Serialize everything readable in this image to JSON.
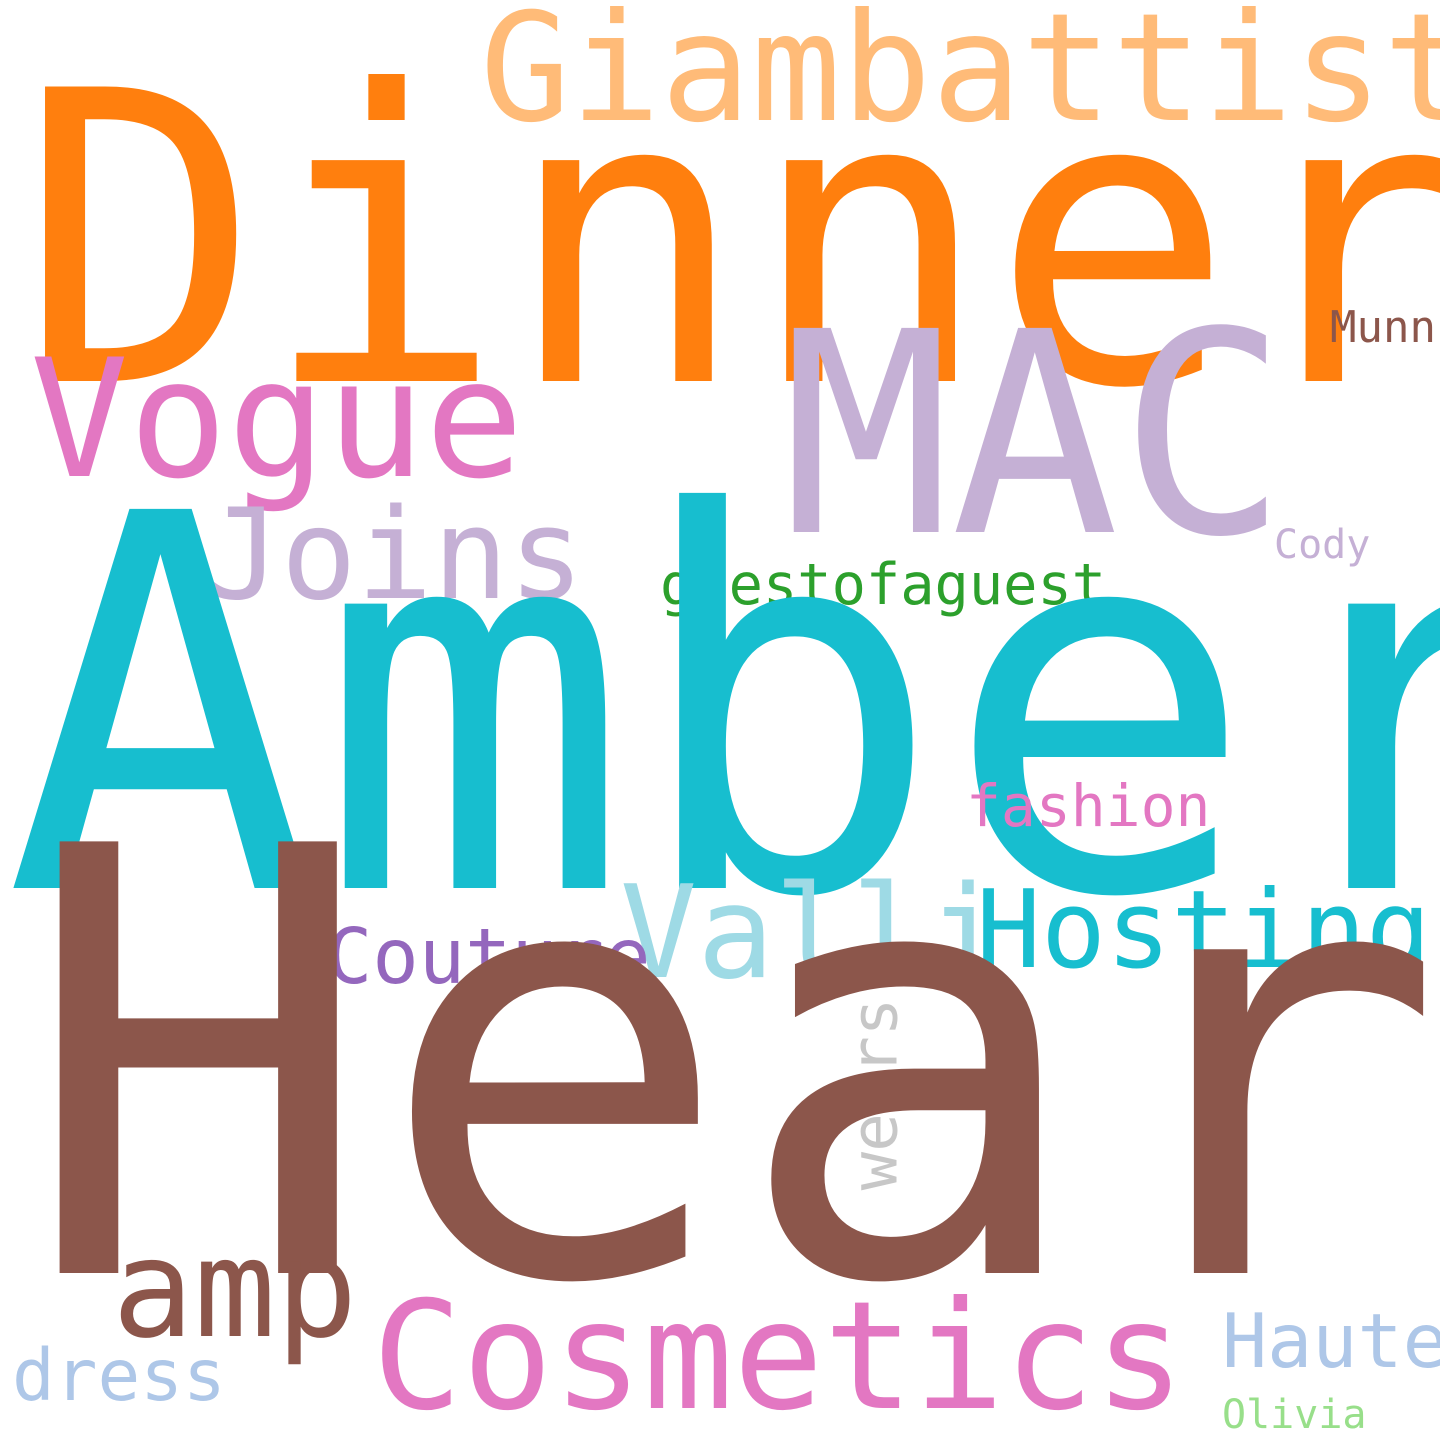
{
  "words": {
    "dinner": {
      "text": "Dinner",
      "color": "#ff7f0e"
    },
    "giambattista": {
      "text": "Giambattista",
      "color": "#ffbb78"
    },
    "munn": {
      "text": "Munn",
      "color": "#8c564b"
    },
    "vogue": {
      "text": "Vogue",
      "color": "#e377c2"
    },
    "mac": {
      "text": "MAC",
      "color": "#c5b0d5"
    },
    "joins": {
      "text": "Joins",
      "color": "#c5b0d5"
    },
    "cody": {
      "text": "Cody",
      "color": "#c5b0d5"
    },
    "guestofaguest": {
      "text": "guestofaguest",
      "color": "#2ca02c"
    },
    "amber": {
      "text": "Amber",
      "color": "#17becf"
    },
    "fashion": {
      "text": "fashion",
      "color": "#e377c2"
    },
    "valli": {
      "text": "Valli",
      "color": "#9edae5"
    },
    "hosting": {
      "text": "Hosting",
      "color": "#17becf"
    },
    "couture": {
      "text": "Couture",
      "color": "#9467bd"
    },
    "wears": {
      "text": "wears",
      "color": "#c7c7c7"
    },
    "heard": {
      "text": "Heard",
      "color": "#8c564b"
    },
    "amp": {
      "text": "amp",
      "color": "#8c564b"
    },
    "cosmetics": {
      "text": "Cosmetics",
      "color": "#e377c2"
    },
    "haute": {
      "text": "Haute",
      "color": "#aec7e8"
    },
    "dress": {
      "text": "dress",
      "color": "#aec7e8"
    },
    "olivia": {
      "text": "Olivia",
      "color": "#98df8a"
    }
  }
}
